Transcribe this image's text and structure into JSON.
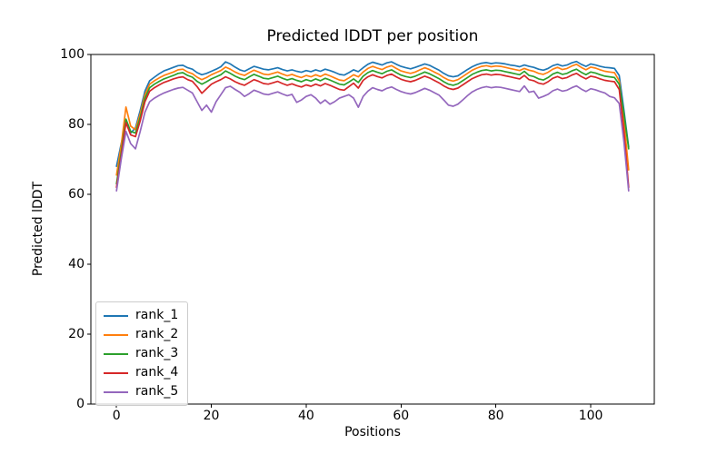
{
  "chart_data": {
    "type": "line",
    "title": "Predicted lDDT per position",
    "xlabel": "Positions",
    "ylabel": "Predicted lDDT",
    "xlim": [
      -5.4,
      113.4
    ],
    "ylim": [
      0,
      100
    ],
    "x_ticks": [
      0,
      20,
      40,
      60,
      80,
      100
    ],
    "y_ticks": [
      0,
      20,
      40,
      60,
      80,
      100
    ],
    "grid": false,
    "legend_position": "lower left",
    "x": [
      0,
      1,
      2,
      3,
      4,
      5,
      6,
      7,
      8,
      9,
      10,
      11,
      12,
      13,
      14,
      15,
      16,
      17,
      18,
      19,
      20,
      21,
      22,
      23,
      24,
      25,
      26,
      27,
      28,
      29,
      30,
      31,
      32,
      33,
      34,
      35,
      36,
      37,
      38,
      39,
      40,
      41,
      42,
      43,
      44,
      45,
      46,
      47,
      48,
      49,
      50,
      51,
      52,
      53,
      54,
      55,
      56,
      57,
      58,
      59,
      60,
      61,
      62,
      63,
      64,
      65,
      66,
      67,
      68,
      69,
      70,
      71,
      72,
      73,
      74,
      75,
      76,
      77,
      78,
      79,
      80,
      81,
      82,
      83,
      84,
      85,
      86,
      87,
      88,
      89,
      90,
      91,
      92,
      93,
      94,
      95,
      96,
      97,
      98,
      99,
      100,
      101,
      102,
      103,
      104,
      105,
      106,
      107,
      108
    ],
    "series": [
      {
        "name": "rank_1",
        "color": "#1f77b4",
        "values": [
          68.0,
          74.5,
          80.5,
          77.5,
          79.0,
          84.0,
          89.5,
          92.5,
          93.5,
          94.5,
          95.3,
          95.8,
          96.3,
          96.8,
          96.9,
          96.2,
          95.8,
          94.8,
          94.2,
          94.6,
          95.2,
          95.8,
          96.5,
          97.9,
          97.3,
          96.4,
          95.6,
          95.2,
          95.9,
          96.6,
          96.2,
          95.8,
          95.6,
          95.9,
          96.2,
          95.7,
          95.3,
          95.6,
          95.2,
          94.9,
          95.4,
          95.1,
          95.6,
          95.2,
          95.8,
          95.4,
          94.9,
          94.3,
          94.1,
          94.8,
          95.6,
          95.1,
          96.2,
          97.2,
          97.8,
          97.4,
          97.0,
          97.6,
          97.9,
          97.2,
          96.6,
          96.2,
          95.9,
          96.3,
          96.8,
          97.3,
          96.9,
          96.2,
          95.5,
          94.6,
          93.9,
          93.6,
          93.9,
          94.8,
          95.7,
          96.5,
          97.1,
          97.5,
          97.7,
          97.4,
          97.6,
          97.5,
          97.3,
          97.0,
          96.8,
          96.5,
          97.0,
          96.6,
          96.3,
          95.8,
          95.5,
          96.0,
          96.8,
          97.2,
          96.7,
          97.0,
          97.6,
          98.0,
          97.2,
          96.6,
          97.3,
          97.0,
          96.6,
          96.3,
          96.2,
          96.0,
          94.0,
          84.0,
          73.5
        ]
      },
      {
        "name": "rank_2",
        "color": "#ff7f0e",
        "values": [
          65.5,
          74.0,
          85.0,
          79.5,
          78.5,
          83.0,
          88.5,
          91.5,
          92.5,
          93.3,
          94.0,
          94.5,
          95.0,
          95.6,
          95.8,
          95.0,
          94.5,
          93.5,
          92.8,
          93.4,
          94.2,
          94.8,
          95.4,
          96.4,
          95.8,
          95.0,
          94.4,
          94.0,
          94.8,
          95.5,
          95.0,
          94.4,
          94.2,
          94.6,
          95.0,
          94.4,
          93.9,
          94.3,
          93.8,
          93.4,
          94.0,
          93.6,
          94.2,
          93.7,
          94.4,
          93.9,
          93.3,
          92.7,
          92.5,
          93.3,
          94.2,
          93.6,
          95.0,
          96.0,
          96.6,
          96.1,
          95.7,
          96.4,
          96.8,
          96.0,
          95.3,
          94.9,
          94.6,
          95.0,
          95.6,
          96.2,
          95.7,
          95.0,
          94.3,
          93.4,
          92.7,
          92.4,
          92.8,
          93.7,
          94.6,
          95.5,
          96.1,
          96.6,
          96.8,
          96.5,
          96.7,
          96.6,
          96.3,
          96.0,
          95.7,
          95.4,
          96.0,
          95.5,
          95.2,
          94.6,
          94.3,
          94.9,
          95.8,
          96.3,
          95.7,
          96.0,
          96.7,
          97.2,
          96.3,
          95.6,
          96.4,
          96.1,
          95.6,
          95.2,
          95.0,
          94.8,
          92.5,
          81.0,
          67.0
        ]
      },
      {
        "name": "rank_3",
        "color": "#2ca02c",
        "values": [
          63.0,
          72.0,
          81.5,
          78.0,
          77.5,
          82.0,
          87.5,
          90.5,
          91.5,
          92.3,
          93.0,
          93.5,
          94.0,
          94.6,
          94.8,
          94.0,
          93.5,
          92.3,
          91.5,
          92.2,
          93.0,
          93.6,
          94.2,
          95.3,
          94.6,
          93.8,
          93.2,
          92.8,
          93.6,
          94.3,
          93.8,
          93.2,
          93.0,
          93.4,
          93.8,
          93.2,
          92.7,
          93.1,
          92.6,
          92.2,
          92.8,
          92.4,
          93.0,
          92.5,
          93.2,
          92.7,
          92.1,
          91.5,
          91.3,
          92.1,
          93.0,
          92.0,
          93.8,
          94.8,
          95.4,
          94.9,
          94.5,
          95.2,
          95.6,
          94.8,
          94.1,
          93.7,
          93.4,
          93.8,
          94.4,
          95.0,
          94.5,
          93.8,
          93.1,
          92.2,
          91.5,
          91.2,
          91.6,
          92.5,
          93.4,
          94.3,
          94.9,
          95.4,
          95.6,
          95.3,
          95.5,
          95.4,
          95.1,
          94.8,
          94.5,
          94.2,
          95.2,
          94.0,
          93.7,
          93.0,
          92.7,
          93.4,
          94.4,
          94.9,
          94.3,
          94.6,
          95.3,
          95.8,
          94.9,
          94.2,
          95.0,
          94.7,
          94.2,
          93.8,
          93.6,
          93.4,
          91.5,
          83.0,
          73.0
        ]
      },
      {
        "name": "rank_4",
        "color": "#d62728",
        "values": [
          62.0,
          71.0,
          80.5,
          77.0,
          76.5,
          81.0,
          86.5,
          89.5,
          90.5,
          91.3,
          92.0,
          92.5,
          93.0,
          93.4,
          93.6,
          92.8,
          92.3,
          90.8,
          88.9,
          90.2,
          91.5,
          92.2,
          92.8,
          93.6,
          93.0,
          92.2,
          91.6,
          91.2,
          92.0,
          92.8,
          92.3,
          91.7,
          91.5,
          91.9,
          92.3,
          91.7,
          91.2,
          91.6,
          91.1,
          90.7,
          91.3,
          90.9,
          91.5,
          91.0,
          91.7,
          91.2,
          90.6,
          90.0,
          89.8,
          90.8,
          91.8,
          90.4,
          92.6,
          93.6,
          94.2,
          93.7,
          93.3,
          94.0,
          94.4,
          93.6,
          92.9,
          92.5,
          92.2,
          92.6,
          93.2,
          93.8,
          93.3,
          92.6,
          91.9,
          91.0,
          90.3,
          90.0,
          90.4,
          91.3,
          92.2,
          93.1,
          93.7,
          94.2,
          94.4,
          94.1,
          94.3,
          94.2,
          93.9,
          93.6,
          93.3,
          93.0,
          94.0,
          92.8,
          92.5,
          91.8,
          91.5,
          92.2,
          93.2,
          93.7,
          93.1,
          93.4,
          94.1,
          94.6,
          93.7,
          93.0,
          93.8,
          93.5,
          93.0,
          92.6,
          92.4,
          92.2,
          90.0,
          78.0,
          62.0
        ]
      },
      {
        "name": "rank_5",
        "color": "#9467bd",
        "values": [
          61.0,
          70.0,
          78.0,
          74.5,
          73.0,
          78.0,
          83.5,
          86.5,
          87.5,
          88.3,
          89.0,
          89.5,
          90.0,
          90.4,
          90.6,
          89.8,
          89.0,
          86.5,
          84.0,
          85.5,
          83.5,
          86.5,
          88.5,
          90.5,
          90.9,
          90.0,
          89.2,
          88.0,
          88.8,
          89.8,
          89.3,
          88.7,
          88.5,
          88.9,
          89.3,
          88.7,
          88.2,
          88.6,
          86.3,
          87.0,
          88.0,
          88.5,
          87.5,
          86.0,
          87.0,
          85.8,
          86.5,
          87.5,
          88.0,
          88.5,
          87.5,
          84.9,
          88.0,
          89.5,
          90.5,
          90.0,
          89.6,
          90.3,
          90.7,
          90.0,
          89.4,
          89.0,
          88.7,
          89.1,
          89.7,
          90.3,
          89.8,
          89.1,
          88.4,
          87.0,
          85.5,
          85.2,
          85.8,
          87.0,
          88.2,
          89.3,
          90.0,
          90.5,
          90.8,
          90.5,
          90.7,
          90.6,
          90.3,
          90.0,
          89.7,
          89.4,
          91.0,
          89.2,
          89.5,
          87.5,
          88.0,
          88.6,
          89.6,
          90.1,
          89.5,
          89.8,
          90.5,
          91.0,
          90.1,
          89.4,
          90.2,
          89.9,
          89.4,
          89.0,
          88.0,
          87.6,
          86.0,
          75.0,
          61.0
        ]
      }
    ]
  }
}
